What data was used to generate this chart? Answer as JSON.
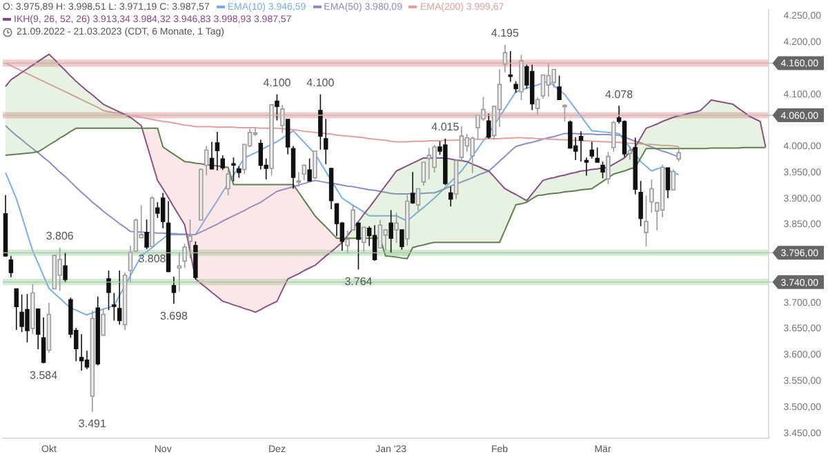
{
  "chart_data": {
    "type": "candlestick",
    "title": "O: 3.975,89 H: 3.998,51 L: 3.971,19 C: 3.987,57",
    "subtitle": "21.09.2022 - 21.03.2023 (CDT, 6 Monate, 1 Tag)",
    "categories": [
      null,
      null,
      null,
      null,
      null,
      null,
      null,
      null,
      "Okt",
      null,
      null,
      null,
      null,
      null,
      null,
      null,
      null,
      null,
      null,
      null,
      null,
      null,
      null,
      null,
      null,
      null,
      null,
      null,
      null,
      "Nov",
      null,
      null,
      null,
      null,
      null,
      null,
      null,
      null,
      null,
      null,
      null,
      null,
      null,
      null,
      null,
      null,
      null,
      null,
      null,
      null,
      "Dez",
      null,
      null,
      null,
      null,
      null,
      null,
      null,
      null,
      null,
      null,
      null,
      null,
      null,
      null,
      null,
      null,
      null,
      null,
      null,
      null,
      "Jan '23",
      null,
      null,
      null,
      null,
      null,
      null,
      null,
      null,
      null,
      null,
      null,
      null,
      null,
      null,
      null,
      null,
      null,
      null,
      null,
      "Feb",
      null,
      null,
      null,
      null,
      null,
      null,
      null,
      null,
      null,
      null,
      null,
      null,
      null,
      null,
      null,
      null,
      null,
      null,
      "Mär",
      null,
      null,
      null,
      null,
      null,
      null,
      null,
      null,
      null,
      null,
      null,
      null,
      null,
      null,
      null,
      null,
      null,
      null,
      null,
      null,
      null,
      null,
      null,
      null,
      null,
      null,
      null,
      null,
      null,
      null
    ],
    "ohlc": [
      [
        3871,
        3907,
        3789,
        3790
      ],
      [
        3782,
        3790,
        3749,
        3758
      ],
      [
        3727,
        3727,
        3648,
        3693
      ],
      [
        3682,
        3716,
        3644,
        3655
      ],
      [
        3687,
        3717,
        3624,
        3647
      ],
      [
        3651,
        3736,
        3640,
        3719
      ],
      [
        3688,
        3688,
        3611,
        3640
      ],
      [
        3633,
        3672,
        3584,
        3586
      ],
      [
        3609,
        3700,
        3604,
        3678
      ],
      [
        3727,
        3791,
        3727,
        3791
      ],
      [
        3753,
        3806,
        3723,
        3783
      ],
      [
        3771,
        3797,
        3739,
        3745
      ],
      [
        3706,
        3710,
        3633,
        3640
      ],
      [
        3647,
        3652,
        3588,
        3612
      ],
      [
        3595,
        3640,
        3570,
        3589
      ],
      [
        3590,
        3608,
        3573,
        3577
      ],
      [
        3521,
        3685,
        3491,
        3670
      ],
      [
        3690,
        3712,
        3580,
        3583
      ],
      [
        3638,
        3689,
        3638,
        3678
      ],
      [
        3746,
        3762,
        3686,
        3720
      ],
      [
        3696,
        3719,
        3666,
        3695
      ],
      [
        3689,
        3762,
        3658,
        3666
      ],
      [
        3658,
        3758,
        3648,
        3753
      ],
      [
        3762,
        3810,
        3741,
        3797
      ],
      [
        3799,
        3862,
        3799,
        3859
      ],
      [
        3825,
        3887,
        3824,
        3831
      ],
      [
        3835,
        3860,
        3803,
        3807
      ],
      [
        3808,
        3905,
        3808,
        3901
      ],
      [
        3882,
        3893,
        3863,
        3872
      ],
      [
        3901,
        3911,
        3843,
        3856
      ],
      [
        3853,
        3895,
        3759,
        3760
      ],
      [
        3733,
        3750,
        3698,
        3720
      ],
      [
        3767,
        3796,
        3722,
        3771
      ],
      [
        3780,
        3813,
        3767,
        3807
      ],
      [
        3818,
        3860,
        3786,
        3828
      ],
      [
        3810,
        3818,
        3745,
        3749
      ],
      [
        3859,
        3958,
        3859,
        3956
      ],
      [
        3964,
        4001,
        3945,
        3993
      ],
      [
        3977,
        4009,
        3956,
        3957
      ],
      [
        4007,
        4028,
        3954,
        3992
      ],
      [
        3976,
        3983,
        3955,
        3959
      ],
      [
        3919,
        3955,
        3906,
        3947
      ],
      [
        3967,
        3979,
        3933,
        3965
      ],
      [
        3957,
        3962,
        3940,
        3950
      ],
      [
        3956,
        4004,
        3947,
        4004
      ],
      [
        4001,
        4034,
        3999,
        4027
      ],
      [
        4024,
        4035,
        4020,
        4026
      ],
      [
        4006,
        4013,
        3956,
        3964
      ],
      [
        3964,
        3977,
        3937,
        3958
      ],
      [
        3958,
        4080,
        3944,
        4080
      ],
      [
        4087,
        4100,
        4050,
        4077
      ],
      [
        4040,
        4080,
        4026,
        4072
      ],
      [
        4052,
        4052,
        3985,
        3999
      ],
      [
        3996,
        4001,
        3919,
        3941
      ],
      [
        3934,
        3951,
        3923,
        3934
      ],
      [
        3947,
        3966,
        3935,
        3964
      ],
      [
        3955,
        3977,
        3933,
        3934
      ],
      [
        3940,
        3991,
        3938,
        3991
      ],
      [
        4069,
        4100,
        3994,
        4020
      ],
      [
        4015,
        4053,
        3966,
        3995
      ],
      [
        3958,
        3959,
        3880,
        3896
      ],
      [
        3890,
        3890,
        3828,
        3852
      ],
      [
        3853,
        3855,
        3800,
        3818
      ],
      [
        3810,
        3839,
        3795,
        3822
      ],
      [
        3840,
        3889,
        3839,
        3878
      ],
      [
        3853,
        3853,
        3764,
        3822
      ],
      [
        3816,
        3845,
        3798,
        3845
      ],
      [
        3843,
        3847,
        3809,
        3829
      ],
      [
        3829,
        3849,
        3781,
        3783
      ],
      [
        3805,
        3859,
        3805,
        3849
      ],
      [
        3830,
        3840,
        3801,
        3840
      ],
      [
        3853,
        3878,
        3795,
        3824
      ],
      [
        3840,
        3873,
        3815,
        3853
      ],
      [
        3840,
        3840,
        3802,
        3808
      ],
      [
        3823,
        3907,
        3810,
        3895
      ],
      [
        3910,
        3951,
        3890,
        3892
      ],
      [
        3888,
        3920,
        3877,
        3919
      ],
      [
        3932,
        3970,
        3925,
        3970
      ],
      [
        3977,
        3997,
        3937,
        3983
      ],
      [
        3960,
        4003,
        3950,
        3999
      ],
      [
        3999,
        4010,
        3984,
        3991
      ],
      [
        4003,
        4015,
        3926,
        3929
      ],
      [
        3911,
        3923,
        3885,
        3899
      ],
      [
        3909,
        3973,
        3899,
        3973
      ],
      [
        3979,
        4039,
        3971,
        4020
      ],
      [
        4001,
        4024,
        3990,
        4017
      ],
      [
        3982,
        4019,
        3949,
        4016
      ],
      [
        4036,
        4061,
        4013,
        4060
      ],
      [
        4053,
        4095,
        4049,
        4071
      ],
      [
        4049,
        4063,
        4015,
        4018
      ],
      [
        4021,
        4077,
        4013,
        4077
      ],
      [
        4071,
        4148,
        4037,
        4119
      ],
      [
        4158,
        4195,
        4142,
        4180
      ],
      [
        4137,
        4183,
        4124,
        4136
      ],
      [
        4119,
        4125,
        4103,
        4111
      ],
      [
        4105,
        4176,
        4089,
        4164
      ],
      [
        4153,
        4157,
        4111,
        4118
      ],
      [
        4144,
        4157,
        4070,
        4082
      ],
      [
        4073,
        4094,
        4060,
        4090
      ],
      [
        4097,
        4138,
        4092,
        4137
      ],
      [
        4118,
        4159,
        4095,
        4136
      ],
      [
        4123,
        4148,
        4113,
        4148
      ],
      [
        4114,
        4136,
        4090,
        4090
      ],
      [
        4078,
        4081,
        4048,
        4079
      ],
      [
        4047,
        4050,
        3996,
        3997
      ],
      [
        4001,
        4018,
        3974,
        3991
      ],
      [
        4019,
        4029,
        3971,
        4012
      ],
      [
        3973,
        3979,
        3944,
        3970
      ],
      [
        3993,
        4009,
        3977,
        3982
      ],
      [
        3977,
        3998,
        3969,
        3970
      ],
      [
        3964,
        3971,
        3939,
        3951
      ],
      [
        3938,
        3990,
        3928,
        3981
      ],
      [
        3998,
        4049,
        3990,
        4046
      ],
      [
        4055,
        4078,
        4044,
        4048
      ],
      [
        4048,
        4050,
        3980,
        3986
      ],
      [
        3987,
        4001,
        3975,
        3992
      ],
      [
        3998,
        4017,
        3908,
        3918
      ],
      [
        3912,
        3934,
        3847,
        3862
      ],
      [
        3835,
        3906,
        3808,
        3856
      ],
      [
        3894,
        3937,
        3873,
        3919
      ],
      [
        3876,
        3894,
        3839,
        3892
      ],
      [
        3878,
        3965,
        3864,
        3960
      ],
      [
        3959,
        3959,
        3901,
        3917
      ],
      [
        3917,
        3956,
        3916,
        3952
      ],
      [
        3976,
        3999,
        3971,
        3988
      ],
      null,
      null,
      null,
      null,
      null,
      null,
      null,
      null,
      null,
      null,
      null,
      null,
      null,
      null,
      null,
      null
    ],
    "series": [
      {
        "name": "EMA(10) 3.946,59",
        "type": "line",
        "color": "#7aaee8",
        "values": [
          3950,
          3925,
          3900,
          3867,
          3833,
          3800,
          3776,
          3752,
          3728,
          3718,
          3709,
          3699,
          3690,
          3686,
          3681,
          3677,
          3681,
          3684,
          3688,
          3691,
          3695,
          3714,
          3733,
          3752,
          3771,
          3790,
          3798,
          3806,
          3815,
          3823,
          3831,
          3831,
          3831,
          3831,
          3831,
          3831,
          3847,
          3864,
          3880,
          3896,
          3913,
          3929,
          3945,
          3962,
          3978,
          3983,
          3988,
          3993,
          3999,
          4004,
          4009,
          4016,
          4023,
          4030,
          4019,
          4008,
          3997,
          3986,
          3969,
          3952,
          3935,
          3918,
          3901,
          3894,
          3887,
          3881,
          3874,
          3867,
          3867,
          3867,
          3867,
          3867,
          3867,
          3862,
          3857,
          3866,
          3875,
          3883,
          3892,
          3901,
          3911,
          3922,
          3932,
          3943,
          3953,
          3967,
          3982,
          3996,
          4011,
          4025,
          4041,
          4057,
          4073,
          4089,
          4105,
          4108,
          4112,
          4115,
          4118,
          4122,
          4125,
          4117,
          4108,
          4100,
          4086,
          4072,
          4058,
          4044,
          4030,
          4029,
          4028,
          4027,
          4026,
          4025,
          4012,
          3998,
          3985,
          3971,
          3962,
          3953,
          3957,
          3960,
          3955,
          3950,
          3946,
          null,
          null,
          null,
          null,
          null,
          null,
          null,
          null,
          null,
          null,
          null,
          null,
          null,
          null,
          null,
          null
        ]
      },
      {
        "name": "EMA(50) 3.980,09",
        "type": "line",
        "color": "#8c8cc8",
        "values": [
          4040,
          4030,
          4021,
          4013,
          4004,
          3996,
          3988,
          3979,
          3971,
          3961,
          3951,
          3942,
          3932,
          3922,
          3912,
          3903,
          3893,
          3885,
          3876,
          3868,
          3860,
          3852,
          3845,
          3837,
          3836,
          3836,
          3835,
          3835,
          3834,
          3834,
          3833,
          3833,
          3832,
          3832,
          3831,
          3831,
          3836,
          3841,
          3846,
          3851,
          3857,
          3862,
          3867,
          3872,
          3877,
          3883,
          3888,
          3893,
          3900,
          3907,
          3914,
          3917,
          3920,
          3923,
          3926,
          3929,
          3932,
          3935,
          3933,
          3931,
          3930,
          3928,
          3926,
          3924,
          3923,
          3921,
          3919,
          3917,
          3916,
          3914,
          3912,
          3910,
          3909,
          3909,
          3909,
          3910,
          3910,
          3910,
          3911,
          3911,
          3915,
          3919,
          3924,
          3928,
          3932,
          3936,
          3940,
          3945,
          3949,
          3953,
          3962,
          3972,
          3981,
          3991,
          4000,
          4003,
          4006,
          4008,
          4011,
          4014,
          4017,
          4019,
          4022,
          4025,
          4025,
          4025,
          4024,
          4024,
          4024,
          4023,
          4023,
          4023,
          4022,
          4022,
          4018,
          4014,
          4010,
          4007,
          4003,
          3999,
          3995,
          3991,
          3988,
          3984,
          3980,
          null,
          null,
          null,
          null,
          null,
          null,
          null,
          null,
          null,
          null,
          null,
          null,
          null,
          null,
          null,
          null
        ]
      },
      {
        "name": "EMA(200) 3.999,67",
        "type": "line",
        "color": "#e0a0a0",
        "values": [
          4160,
          4155,
          4150,
          4145,
          4140,
          4135,
          4130,
          4125,
          4120,
          4115,
          4110,
          4105,
          4100,
          4095,
          4090,
          4085,
          4080,
          4075,
          4069,
          4067,
          4065,
          4064,
          4062,
          4060,
          4058,
          4056,
          4054,
          4052,
          4050,
          4048,
          4047,
          4045,
          4043,
          4041,
          4040,
          4038,
          4038,
          4038,
          4038,
          4037,
          4037,
          4037,
          4037,
          4036,
          4036,
          4036,
          4036,
          4035,
          4035,
          4035,
          4035,
          4034,
          4033,
          4032,
          4031,
          4029,
          4028,
          4027,
          4026,
          4025,
          4024,
          4022,
          4021,
          4020,
          4019,
          4018,
          4017,
          4015,
          4014,
          4013,
          4012,
          4010,
          4009,
          4009,
          4009,
          4010,
          4010,
          4010,
          4011,
          4011,
          4011,
          4012,
          4012,
          4012,
          4013,
          4013,
          4014,
          4014,
          4014,
          4015,
          4015,
          4015,
          4016,
          4016,
          4017,
          4017,
          4016,
          4016,
          4015,
          4015,
          4014,
          4014,
          4013,
          4013,
          4012,
          4012,
          4011,
          4011,
          4010,
          4010,
          4009,
          4009,
          4008,
          4008,
          4007,
          4006,
          4006,
          4005,
          4004,
          4004,
          4003,
          4002,
          4002,
          4001,
          4000,
          null,
          null,
          null,
          null,
          null,
          null,
          null,
          null,
          null,
          null,
          null,
          null,
          null,
          null,
          null,
          null
        ]
      },
      {
        "name": "IKH(9, 26, 52, 26) 3.913,34 3.984,32 3.946,83 3.998,93 3.987,57",
        "type": "line",
        "color": "#864a86",
        "values": [
          4115,
          4128,
          4135,
          4142,
          4149,
          4156,
          4163,
          4170,
          4177,
          4167,
          4156,
          4146,
          4135,
          4125,
          4116,
          4107,
          4099,
          4090,
          4081,
          4076,
          4071,
          4066,
          4061,
          4056,
          4048,
          4040,
          4005,
          3970,
          3935,
          3919,
          3902,
          3884,
          3867,
          3850,
          3798,
          3746,
          3737,
          3729,
          3720,
          3712,
          3703,
          3700,
          3696,
          3693,
          3689,
          3686,
          3682,
          3687,
          3693,
          3698,
          3703,
          3725,
          3746,
          3751,
          3756,
          3762,
          3767,
          3772,
          3781,
          3790,
          3798,
          3807,
          3816,
          3829,
          3843,
          3856,
          3870,
          3883,
          3897,
          3911,
          3925,
          3939,
          3953,
          3958,
          3963,
          3968,
          3973,
          3978,
          3978,
          3978,
          3978,
          3978,
          3976,
          3974,
          3973,
          3971,
          3966,
          3962,
          3957,
          3953,
          3942,
          3930,
          3919,
          3913,
          3908,
          3902,
          3896,
          3909,
          3922,
          3935,
          3938,
          3940,
          3943,
          3945,
          3948,
          3950,
          3953,
          3954,
          3956,
          3957,
          3959,
          3960,
          3966,
          3972,
          3978,
          3989,
          3999,
          4017,
          4035,
          4039,
          4043,
          4048,
          4052,
          4056,
          4059,
          4061,
          4064,
          4066,
          4069,
          4079,
          4089,
          4087,
          4085,
          4083,
          4081,
          4073,
          4066,
          4058,
          4053,
          4048,
          3999
        ]
      },
      {
        "type": "line",
        "color": "#5f7f4f",
        "values": [
          3983,
          3984,
          3985,
          3986,
          3987,
          3988,
          3990,
          3996,
          4003,
          4009,
          4016,
          4022,
          4029,
          4035,
          4035,
          4035,
          4035,
          4035,
          4035,
          4035,
          4035,
          4035,
          4035,
          4035,
          4035,
          4035,
          4035,
          4035,
          4035,
          3999,
          3992,
          3985,
          3978,
          3971,
          3970,
          3968,
          3967,
          3965,
          3964,
          3963,
          3961,
          3960,
          3927,
          3927,
          3927,
          3927,
          3927,
          3927,
          3927,
          3927,
          3927,
          3927,
          3927,
          3927,
          3912,
          3897,
          3882,
          3867,
          3856,
          3846,
          3835,
          3824,
          3824,
          3824,
          3824,
          3824,
          3824,
          3824,
          3824,
          3824,
          3790,
          3789,
          3788,
          3786,
          3785,
          3806,
          3809,
          3811,
          3814,
          3816,
          3816,
          3816,
          3816,
          3816,
          3816,
          3816,
          3816,
          3816,
          3816,
          3816,
          3816,
          3816,
          3840,
          3864,
          3888,
          3890,
          3893,
          3900,
          3906,
          3907,
          3909,
          3910,
          3911,
          3913,
          3914,
          3915,
          3917,
          3918,
          3919,
          3926,
          3933,
          3940,
          3947,
          3950,
          3953,
          3957,
          3960,
          3978,
          3996,
          3996,
          3996,
          3996,
          3996,
          3996,
          3996,
          3996,
          3996,
          3996,
          3996,
          3996,
          3997,
          3997,
          3997,
          3997,
          3997,
          3997,
          3998,
          3998,
          3998,
          3998,
          3998
        ]
      }
    ],
    "ylim": [
      3440,
      4262
    ],
    "yticks": [
      {
        "value": 3450,
        "label": "3.450,00"
      },
      {
        "value": 3500,
        "label": "3.500,00"
      },
      {
        "value": 3550,
        "label": "3.550,00"
      },
      {
        "value": 3600,
        "label": "3.600,00"
      },
      {
        "value": 3650,
        "label": "3.650,00"
      },
      {
        "value": 3700,
        "label": "3.700,00"
      },
      {
        "value": 3850,
        "label": "3.850,00"
      },
      {
        "value": 3900,
        "label": "3.900,00"
      },
      {
        "value": 3950,
        "label": "3.950,00"
      },
      {
        "value": 4000,
        "label": "4.000,00"
      },
      {
        "value": 4100,
        "label": "4.100,00"
      },
      {
        "value": 4200,
        "label": "4.200,00"
      },
      {
        "value": 4250,
        "label": "4.250,00"
      }
    ],
    "bands": [
      {
        "axis": "y",
        "from": 4153,
        "to": 4167,
        "label": "4.160,00",
        "color": "#f2b8b8"
      },
      {
        "axis": "y",
        "from": 4054,
        "to": 4066,
        "label": "4.060,00",
        "color": "#f2b8b8"
      },
      {
        "axis": "y",
        "from": 3790,
        "to": 3802,
        "label": "3.796,00",
        "color": "#bfe6bf"
      },
      {
        "axis": "y",
        "from": 3734,
        "to": 3746,
        "label": "3.740,00",
        "color": "#bfe6bf"
      }
    ],
    "annotations": [
      {
        "text": "3.584",
        "y": 3584
      },
      {
        "text": "3.806",
        "y": 3806
      },
      {
        "text": "3.491",
        "y": 3491
      },
      {
        "text": "3.698",
        "y": 3698
      },
      {
        "text": "4.100",
        "y": 4100
      },
      {
        "text": "4.100",
        "y": 4100
      },
      {
        "text": "3.764",
        "y": 3764
      },
      {
        "text": "4.015",
        "y": 4015
      },
      {
        "text": "4.195",
        "y": 4195
      },
      {
        "text": "4.078",
        "y": 4078
      },
      {
        "text": "3.808",
        "y": 3808
      }
    ],
    "legend": "top left",
    "grid": false
  }
}
